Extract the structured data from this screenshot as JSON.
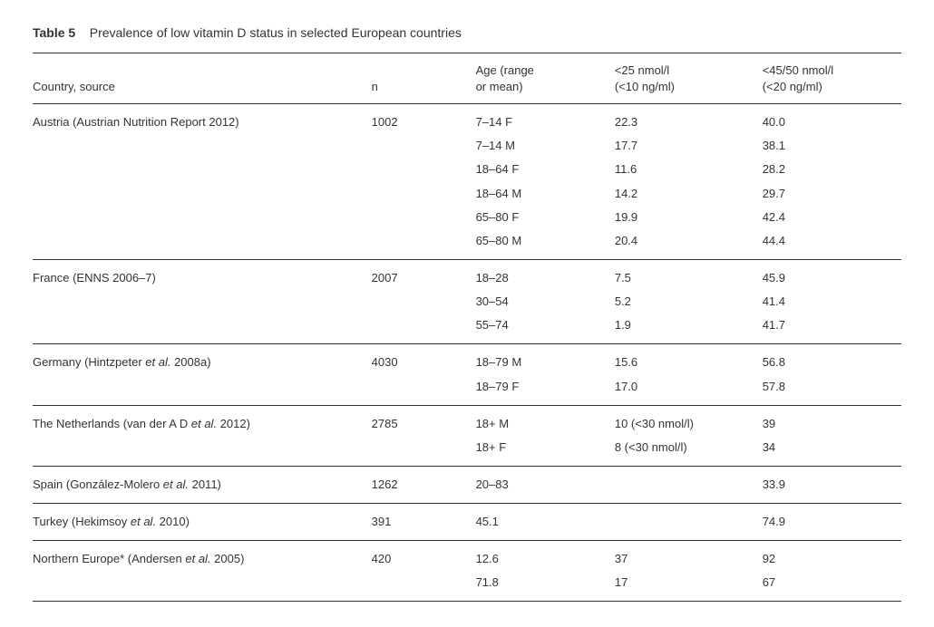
{
  "title": {
    "label": "Table 5",
    "caption": "Prevalence of low vitamin D status in selected European countries"
  },
  "columns": {
    "country": "Country, source",
    "n": "n",
    "age_l1": "Age (range",
    "age_l2": "or mean)",
    "c25_l1": "<25 nmol/l",
    "c25_l2": "(<10 ng/ml)",
    "c45_l1": "<45/50 nmol/l",
    "c45_l2": "(<20 ng/ml)"
  },
  "groups": [
    {
      "country": "Austria (Austrian Nutrition Report 2012)",
      "n": "1002",
      "rows": [
        {
          "age": "7–14 F",
          "c25": "22.3",
          "c45": "40.0"
        },
        {
          "age": "7–14 M",
          "c25": "17.7",
          "c45": "38.1"
        },
        {
          "age": "18–64 F",
          "c25": "11.6",
          "c45": "28.2"
        },
        {
          "age": "18–64 M",
          "c25": "14.2",
          "c45": "29.7"
        },
        {
          "age": "65–80 F",
          "c25": "19.9",
          "c45": "42.4"
        },
        {
          "age": "65–80 M",
          "c25": "20.4",
          "c45": "44.4"
        }
      ]
    },
    {
      "country": "France (ENNS 2006–7)",
      "n": "2007",
      "rows": [
        {
          "age": "18–28",
          "c25": "7.5",
          "c45": "45.9"
        },
        {
          "age": "30–54",
          "c25": "5.2",
          "c45": "41.4"
        },
        {
          "age": "55–74",
          "c25": "1.9",
          "c45": "41.7"
        }
      ]
    },
    {
      "country_html": "Germany (Hintzpeter <em class=\"src\">et al.</em> 2008a)",
      "n": "4030",
      "rows": [
        {
          "age": "18–79 M",
          "c25": "15.6",
          "c45": "56.8"
        },
        {
          "age": "18–79 F",
          "c25": "17.0",
          "c45": "57.8"
        }
      ]
    },
    {
      "country_html": "The Netherlands (van der A D <em class=\"src\">et al.</em> 2012)",
      "n": "2785",
      "rows": [
        {
          "age": "18+ M",
          "c25": "10 (<30 nmol/l)",
          "c45": "39"
        },
        {
          "age": "18+ F",
          "c25": "8 (<30 nmol/l)",
          "c45": "34"
        }
      ]
    },
    {
      "country_html": "Spain (González-Molero <em class=\"src\">et al.</em> 2011)",
      "n": "1262",
      "rows": [
        {
          "age": "20–83",
          "c25": "",
          "c45": "33.9"
        }
      ]
    },
    {
      "country_html": "Turkey (Hekimsoy <em class=\"src\">et al.</em> 2010)",
      "n": "391",
      "rows": [
        {
          "age": "45.1",
          "c25": "",
          "c45": "74.9"
        }
      ]
    },
    {
      "country_html": "Northern Europe* (Andersen <em class=\"src\">et al.</em> 2005)",
      "n": "420",
      "rows": [
        {
          "age": "12.6",
          "c25": "37",
          "c45": "92"
        },
        {
          "age": "71.8",
          "c25": "17",
          "c45": "67"
        }
      ]
    }
  ]
}
